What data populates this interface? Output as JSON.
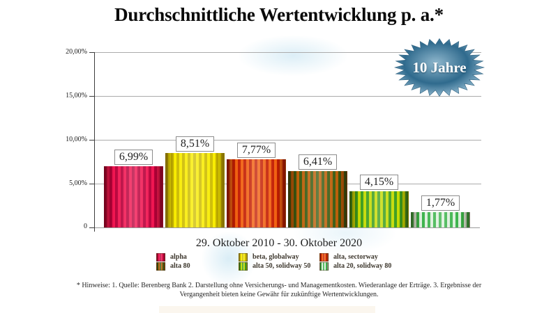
{
  "title": "Durchschnittliche Wertentwicklung p. a.*",
  "badge": {
    "label": "10 Jahre",
    "color_center": "#8fb7cd",
    "color_ring": "#2f6a8d",
    "color_spikes": "#9cc2d8"
  },
  "chart_data": {
    "type": "bar",
    "title": "Durchschnittliche Wertentwicklung p. a.*",
    "xlabel": "29. Oktober 2010 - 30. Oktober 2020",
    "ylabel": "",
    "ylim": [
      0,
      20
    ],
    "grid": true,
    "legend_position": "bottom",
    "categories": [
      "alpha",
      "beta, globalway",
      "alta, sectorway",
      "alta 80",
      "alta 50, solidway 50",
      "alta 20, solidway 80"
    ],
    "values": [
      6.99,
      8.51,
      7.77,
      6.41,
      4.15,
      1.77
    ],
    "value_labels": [
      "6,99%",
      "8,51%",
      "7,77%",
      "6,41%",
      "4,15%",
      "1,77%"
    ],
    "yticks": [
      "20,00%",
      "15,00%",
      "10,00%",
      "5,00%",
      "0"
    ],
    "bar_colors": [
      [
        "#b8003a",
        "#f01450"
      ],
      [
        "#cdbc00",
        "#f8ec00"
      ],
      [
        "#c41e02",
        "#f06010"
      ],
      [
        "#3a5a10",
        "#bc5e08"
      ],
      [
        "#3a9c1c",
        "#c4da00"
      ],
      [
        "#38b248",
        "#dcefdc"
      ]
    ]
  },
  "legend": {
    "items": [
      {
        "label": "alpha"
      },
      {
        "label": "beta, globalway"
      },
      {
        "label": "alta, sectorway"
      },
      {
        "label": "alta 80"
      },
      {
        "label": "alta 50, solidway 50"
      },
      {
        "label": "alta 20, solidway 80"
      }
    ]
  },
  "footnote": "* Hinweise: 1. Quelle: Berenberg Bank  2. Darstellung ohne Versicherungs- und Managementkosten. Wiederanlage der Erträge.  3. Ergebnisse der Vergangenheit bieten keine Gewähr für zukünftige Wertentwicklungen."
}
